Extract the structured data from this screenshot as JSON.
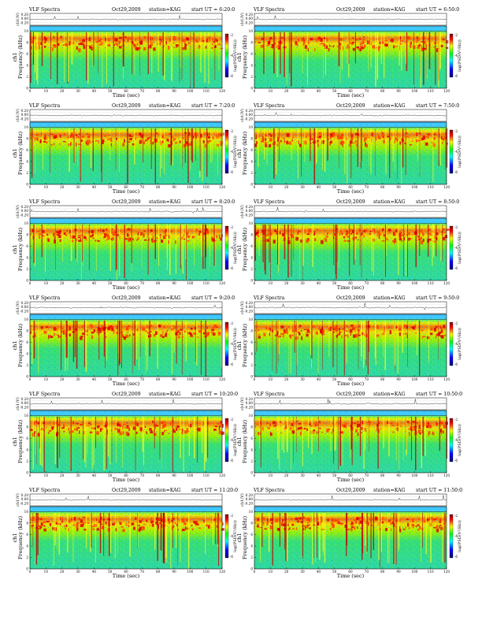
{
  "chart_data": {
    "type": "heatmap",
    "common": {
      "title_left": "VLF Spectra",
      "date": "Oct29,2009",
      "station": "station=KAG",
      "start_prefix": "start UT =",
      "xlabel": "Time (sec)",
      "ylabel": "Frequency (kHz)",
      "ylabel_channel": "ch1",
      "amp_label": "ch1(V)",
      "amp_ticks": [
        "0.20",
        "0.00",
        "-0.20"
      ],
      "colorbar_label": "log(PSD(V²/Hz))",
      "colorbar_ticks": [
        "-2",
        "-4",
        "-6"
      ],
      "xlim": [
        0,
        120
      ],
      "x_ticks": [
        0,
        10,
        20,
        30,
        40,
        50,
        60,
        70,
        80,
        90,
        100,
        110,
        120
      ],
      "ylim": [
        0,
        10
      ],
      "y_ticks": [
        0,
        2,
        4,
        6,
        8,
        10
      ]
    },
    "panels": [
      {
        "start_ut": "6:20:0"
      },
      {
        "start_ut": "6:50:0"
      },
      {
        "start_ut": "7:20:0"
      },
      {
        "start_ut": "7:50:0"
      },
      {
        "start_ut": "8:20:0"
      },
      {
        "start_ut": "8:50:0"
      },
      {
        "start_ut": "9:20:0"
      },
      {
        "start_ut": "9:50:0"
      },
      {
        "start_ut": "10:20:0"
      },
      {
        "start_ut": "10:50:0"
      },
      {
        "start_ut": "11:20:0"
      },
      {
        "start_ut": "11:50:0"
      }
    ]
  }
}
